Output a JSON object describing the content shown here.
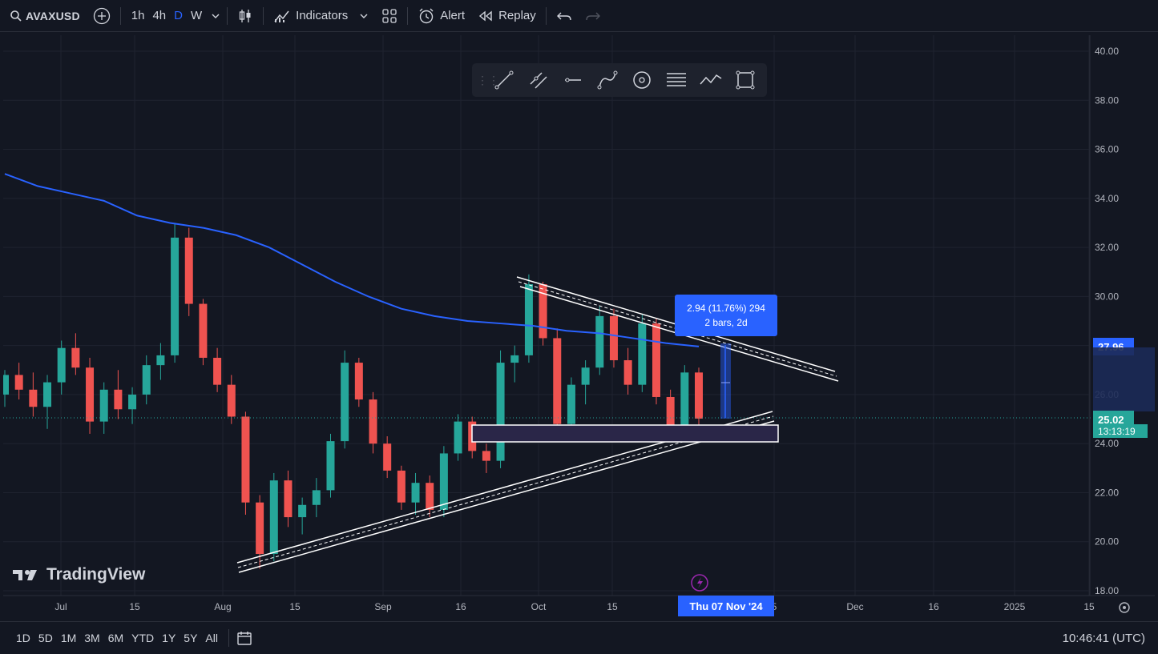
{
  "header": {
    "symbol": "AVAXUSD",
    "intervals": [
      "1h",
      "4h",
      "D",
      "W"
    ],
    "active_interval": "D",
    "indicators_label": "Indicators",
    "alert_label": "Alert",
    "replay_label": "Replay"
  },
  "price_axis": [
    "40.00",
    "38.00",
    "36.00",
    "34.00",
    "32.00",
    "30.00",
    "28.00",
    "26.00",
    "24.00",
    "22.00",
    "20.00",
    "18.00"
  ],
  "time_axis": [
    "Jul",
    "15",
    "Aug",
    "15",
    "Sep",
    "16",
    "Oct",
    "15",
    "5",
    "Dec",
    "16",
    "2025",
    "15"
  ],
  "price_tags": {
    "ma_value": "27.96",
    "last_price": "25.02",
    "countdown": "13:13:19"
  },
  "measure": {
    "line1": "2.94 (11.76%) 294",
    "line2": "2 bars, 2d"
  },
  "crosshair_date": "Thu 07 Nov '24",
  "watermark": "TradingView",
  "ranges": [
    "1D",
    "5D",
    "1M",
    "3M",
    "6M",
    "YTD",
    "1Y",
    "5Y",
    "All"
  ],
  "clock": "10:46:41 (UTC)",
  "colors": {
    "bg": "#131722",
    "up": "#26a69a",
    "down": "#ef5350",
    "ma": "#2962ff",
    "accent": "#2962ff"
  },
  "chart_data": {
    "type": "candlestick",
    "ylim": [
      18,
      40
    ],
    "moving_average": [
      35.0,
      34.5,
      34.2,
      33.9,
      33.3,
      33.0,
      32.8,
      32.5,
      32.0,
      31.3,
      30.6,
      30.0,
      29.5,
      29.2,
      29.0,
      28.9,
      28.8,
      28.6,
      28.5,
      28.3,
      28.1,
      27.96
    ],
    "candles": [
      [
        26,
        27,
        25.5,
        26.8
      ],
      [
        26.8,
        27.3,
        25.8,
        26.2
      ],
      [
        26.2,
        26.9,
        25.1,
        25.5
      ],
      [
        25.5,
        26.8,
        24.6,
        26.5
      ],
      [
        26.5,
        28.2,
        26.0,
        27.9
      ],
      [
        27.9,
        28.5,
        26.8,
        27.1
      ],
      [
        27.1,
        27.5,
        24.4,
        24.9
      ],
      [
        24.9,
        26.5,
        24.4,
        26.2
      ],
      [
        26.2,
        27.0,
        25.0,
        25.4
      ],
      [
        25.4,
        26.3,
        24.8,
        26.0
      ],
      [
        26.0,
        27.6,
        25.6,
        27.2
      ],
      [
        27.2,
        28.1,
        26.6,
        27.6
      ],
      [
        27.6,
        33.0,
        27.3,
        32.4
      ],
      [
        32.4,
        32.8,
        29.2,
        29.7
      ],
      [
        29.7,
        29.9,
        27.2,
        27.5
      ],
      [
        27.5,
        27.9,
        26.1,
        26.4
      ],
      [
        26.4,
        26.8,
        24.8,
        25.1
      ],
      [
        25.1,
        25.3,
        21.1,
        21.6
      ],
      [
        21.6,
        21.9,
        18.9,
        19.5
      ],
      [
        19.5,
        22.8,
        19.2,
        22.5
      ],
      [
        22.5,
        22.9,
        20.6,
        21.0
      ],
      [
        21.0,
        21.8,
        20.3,
        21.5
      ],
      [
        21.5,
        22.6,
        21.0,
        22.1
      ],
      [
        22.1,
        24.4,
        21.8,
        24.1
      ],
      [
        24.1,
        27.8,
        23.8,
        27.3
      ],
      [
        27.3,
        27.5,
        25.5,
        25.8
      ],
      [
        25.8,
        26.1,
        23.6,
        24.0
      ],
      [
        24.0,
        24.3,
        22.6,
        22.9
      ],
      [
        22.9,
        23.1,
        21.3,
        21.6
      ],
      [
        21.6,
        22.8,
        21.1,
        22.4
      ],
      [
        22.4,
        22.7,
        21.0,
        21.3
      ],
      [
        21.3,
        23.9,
        21.0,
        23.6
      ],
      [
        23.6,
        25.2,
        23.3,
        24.9
      ],
      [
        24.9,
        25.1,
        23.4,
        23.7
      ],
      [
        23.7,
        24.0,
        22.8,
        23.3
      ],
      [
        23.3,
        27.8,
        23.0,
        27.3
      ],
      [
        27.3,
        28.0,
        26.5,
        27.6
      ],
      [
        27.6,
        30.9,
        27.3,
        30.5
      ],
      [
        30.5,
        30.6,
        28.0,
        28.3
      ],
      [
        28.3,
        28.7,
        24.5,
        24.8
      ],
      [
        24.8,
        26.7,
        24.3,
        26.4
      ],
      [
        26.4,
        27.4,
        25.6,
        27.1
      ],
      [
        27.1,
        29.6,
        26.8,
        29.2
      ],
      [
        29.2,
        29.5,
        27.1,
        27.4
      ],
      [
        27.4,
        27.9,
        26.0,
        26.4
      ],
      [
        26.4,
        29.3,
        26.1,
        28.9
      ],
      [
        28.9,
        29.1,
        25.6,
        25.9
      ],
      [
        25.9,
        26.2,
        24.1,
        24.5
      ],
      [
        24.5,
        27.2,
        24.2,
        26.9
      ],
      [
        26.9,
        27.1,
        24.6,
        25.02
      ]
    ]
  }
}
